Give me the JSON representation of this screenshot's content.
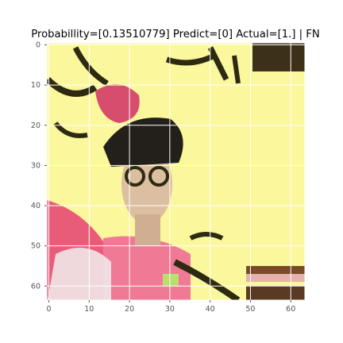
{
  "chart_data": {
    "type": "heatmap",
    "title": "Probabillity=[0.13510779] Predict=[0] Actual=[1.] | FN",
    "probability": 0.13510779,
    "predict": 0,
    "actual": 1.0,
    "outcome": "FN",
    "image_size": [
      64,
      64
    ],
    "xlim": [
      0,
      63
    ],
    "ylim": [
      63,
      0
    ],
    "x_ticks": [
      "0",
      "10",
      "20",
      "30",
      "40",
      "50",
      "60"
    ],
    "y_ticks": [
      "0",
      "10",
      "20",
      "30",
      "40",
      "50",
      "60"
    ],
    "grid": true,
    "colors": {
      "background_yellow": "#fbf79c",
      "dark_ink": "#2e2a12",
      "pink": "#e85c7a",
      "skin": "#d8b89a",
      "white": "#f6f2ee",
      "grid": "#ffffff"
    }
  }
}
